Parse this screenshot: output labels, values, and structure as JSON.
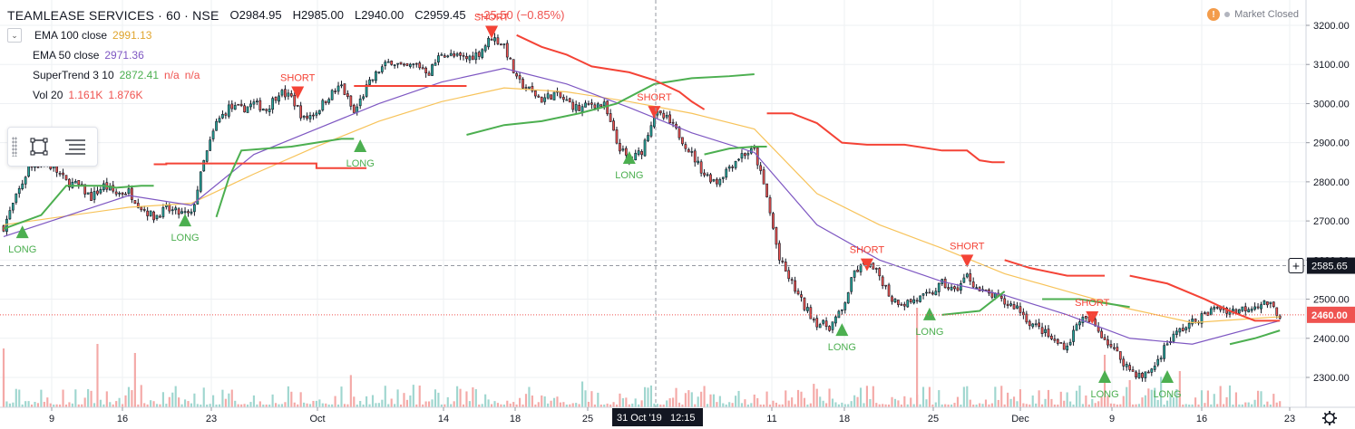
{
  "legend": {
    "symbol": "TEAMLEASE SERVICES · 60 · NSE",
    "open": "O2984.95",
    "high": "H2985.00",
    "low": "L2940.00",
    "close": "C2959.45",
    "change": "−25.50 (−0.85%)",
    "ema100_label": "EMA 100 close",
    "ema100_value": "2991.13",
    "ema50_label": "EMA 50 close",
    "ema50_value": "2971.36",
    "supertrend_label": "SuperTrend 3 10",
    "supertrend_value": "2872.41",
    "supertrend_na1": "n/a",
    "supertrend_na2": "n/a",
    "vol_label": "Vol 20",
    "vol_value1": "1.161K",
    "vol_value2": "1.876K"
  },
  "market_status": "Market Closed",
  "colors": {
    "up": "#26a69a",
    "down": "#ef5350",
    "ema100": "#f7c35a",
    "ema50": "#7e57c2",
    "st_up": "#4caf50",
    "st_down": "#f44336",
    "vol_up": "#9fd6cf",
    "vol_down": "#f4a9a7"
  },
  "chart_data": {
    "type": "candlestick",
    "ylim": [
      2260,
      3230
    ],
    "y_ticks": [
      "3200.00",
      "3100.00",
      "3000.00",
      "2900.00",
      "2800.00",
      "2700.00",
      "2600.00",
      "2500.00",
      "2400.00",
      "2300.00"
    ],
    "x_ticks": [
      "9",
      "16",
      "23",
      "Oct",
      "14",
      "18",
      "25",
      "11",
      "18",
      "25",
      "Dec",
      "9",
      "16",
      "23"
    ],
    "crosshair_price": "2585.65",
    "crosshair_time": "31 Oct '19",
    "crosshair_clock": "12:15",
    "last_price": "2460.00",
    "close_path": [
      {
        "t": 0,
        "v": 2685
      },
      {
        "t": 2,
        "v": 2760
      },
      {
        "t": 4,
        "v": 2835
      },
      {
        "t": 6,
        "v": 2850
      },
      {
        "t": 8,
        "v": 2835
      },
      {
        "t": 10,
        "v": 2800
      },
      {
        "t": 12,
        "v": 2790
      },
      {
        "t": 14,
        "v": 2760
      },
      {
        "t": 16,
        "v": 2790
      },
      {
        "t": 18,
        "v": 2770
      },
      {
        "t": 20,
        "v": 2775
      },
      {
        "t": 22,
        "v": 2735
      },
      {
        "t": 24,
        "v": 2710
      },
      {
        "t": 26,
        "v": 2730
      },
      {
        "t": 28,
        "v": 2720
      },
      {
        "t": 30,
        "v": 2715
      },
      {
        "t": 32,
        "v": 2850
      },
      {
        "t": 34,
        "v": 2950
      },
      {
        "t": 36,
        "v": 2990
      },
      {
        "t": 38,
        "v": 2985
      },
      {
        "t": 40,
        "v": 3000
      },
      {
        "t": 42,
        "v": 2985
      },
      {
        "t": 44,
        "v": 3030
      },
      {
        "t": 46,
        "v": 3015
      },
      {
        "t": 48,
        "v": 2960
      },
      {
        "t": 50,
        "v": 2980
      },
      {
        "t": 52,
        "v": 3020
      },
      {
        "t": 54,
        "v": 3045
      },
      {
        "t": 56,
        "v": 2975
      },
      {
        "t": 58,
        "v": 3040
      },
      {
        "t": 60,
        "v": 3085
      },
      {
        "t": 62,
        "v": 3110
      },
      {
        "t": 64,
        "v": 3090
      },
      {
        "t": 66,
        "v": 3100
      },
      {
        "t": 68,
        "v": 3080
      },
      {
        "t": 70,
        "v": 3130
      },
      {
        "t": 72,
        "v": 3120
      },
      {
        "t": 74,
        "v": 3115
      },
      {
        "t": 76,
        "v": 3130
      },
      {
        "t": 78,
        "v": 3170
      },
      {
        "t": 80,
        "v": 3150
      },
      {
        "t": 82,
        "v": 3060
      },
      {
        "t": 84,
        "v": 3035
      },
      {
        "t": 86,
        "v": 3010
      },
      {
        "t": 88,
        "v": 3025
      },
      {
        "t": 90,
        "v": 3005
      },
      {
        "t": 92,
        "v": 2985
      },
      {
        "t": 94,
        "v": 3000
      },
      {
        "t": 96,
        "v": 2995
      },
      {
        "t": 98,
        "v": 2900
      },
      {
        "t": 100,
        "v": 2850
      },
      {
        "t": 102,
        "v": 2880
      },
      {
        "t": 104,
        "v": 2975
      },
      {
        "t": 106,
        "v": 2960
      },
      {
        "t": 108,
        "v": 2920
      },
      {
        "t": 110,
        "v": 2870
      },
      {
        "t": 112,
        "v": 2820
      },
      {
        "t": 114,
        "v": 2800
      },
      {
        "t": 116,
        "v": 2840
      },
      {
        "t": 118,
        "v": 2870
      },
      {
        "t": 120,
        "v": 2880
      },
      {
        "t": 122,
        "v": 2760
      },
      {
        "t": 124,
        "v": 2600
      },
      {
        "t": 126,
        "v": 2540
      },
      {
        "t": 128,
        "v": 2480
      },
      {
        "t": 130,
        "v": 2440
      },
      {
        "t": 132,
        "v": 2430
      },
      {
        "t": 134,
        "v": 2470
      },
      {
        "t": 136,
        "v": 2570
      },
      {
        "t": 138,
        "v": 2590
      },
      {
        "t": 140,
        "v": 2560
      },
      {
        "t": 142,
        "v": 2500
      },
      {
        "t": 144,
        "v": 2490
      },
      {
        "t": 146,
        "v": 2500
      },
      {
        "t": 148,
        "v": 2510
      },
      {
        "t": 150,
        "v": 2540
      },
      {
        "t": 152,
        "v": 2520
      },
      {
        "t": 154,
        "v": 2560
      },
      {
        "t": 156,
        "v": 2520
      },
      {
        "t": 158,
        "v": 2510
      },
      {
        "t": 160,
        "v": 2490
      },
      {
        "t": 162,
        "v": 2480
      },
      {
        "t": 164,
        "v": 2440
      },
      {
        "t": 166,
        "v": 2420
      },
      {
        "t": 168,
        "v": 2390
      },
      {
        "t": 170,
        "v": 2380
      },
      {
        "t": 172,
        "v": 2450
      },
      {
        "t": 174,
        "v": 2440
      },
      {
        "t": 176,
        "v": 2400
      },
      {
        "t": 178,
        "v": 2360
      },
      {
        "t": 180,
        "v": 2320
      },
      {
        "t": 182,
        "v": 2300
      },
      {
        "t": 184,
        "v": 2330
      },
      {
        "t": 186,
        "v": 2390
      },
      {
        "t": 188,
        "v": 2420
      },
      {
        "t": 190,
        "v": 2440
      },
      {
        "t": 192,
        "v": 2460
      },
      {
        "t": 194,
        "v": 2480
      },
      {
        "t": 196,
        "v": 2470
      },
      {
        "t": 198,
        "v": 2475
      },
      {
        "t": 200,
        "v": 2485
      },
      {
        "t": 202,
        "v": 2490
      },
      {
        "t": 204,
        "v": 2460
      }
    ],
    "ema100": [
      {
        "t": 0,
        "v": 2690
      },
      {
        "t": 20,
        "v": 2735
      },
      {
        "t": 30,
        "v": 2745
      },
      {
        "t": 40,
        "v": 2820
      },
      {
        "t": 50,
        "v": 2890
      },
      {
        "t": 60,
        "v": 2955
      },
      {
        "t": 70,
        "v": 3005
      },
      {
        "t": 80,
        "v": 3040
      },
      {
        "t": 90,
        "v": 3030
      },
      {
        "t": 100,
        "v": 3005
      },
      {
        "t": 110,
        "v": 2975
      },
      {
        "t": 120,
        "v": 2935
      },
      {
        "t": 130,
        "v": 2770
      },
      {
        "t": 140,
        "v": 2690
      },
      {
        "t": 150,
        "v": 2630
      },
      {
        "t": 160,
        "v": 2565
      },
      {
        "t": 170,
        "v": 2520
      },
      {
        "t": 180,
        "v": 2475
      },
      {
        "t": 190,
        "v": 2440
      },
      {
        "t": 204,
        "v": 2455
      }
    ],
    "ema50": [
      {
        "t": 0,
        "v": 2660
      },
      {
        "t": 20,
        "v": 2765
      },
      {
        "t": 30,
        "v": 2740
      },
      {
        "t": 40,
        "v": 2870
      },
      {
        "t": 50,
        "v": 2935
      },
      {
        "t": 60,
        "v": 3000
      },
      {
        "t": 70,
        "v": 3055
      },
      {
        "t": 80,
        "v": 3090
      },
      {
        "t": 90,
        "v": 3050
      },
      {
        "t": 100,
        "v": 2990
      },
      {
        "t": 110,
        "v": 2925
      },
      {
        "t": 120,
        "v": 2875
      },
      {
        "t": 130,
        "v": 2690
      },
      {
        "t": 140,
        "v": 2600
      },
      {
        "t": 150,
        "v": 2545
      },
      {
        "t": 160,
        "v": 2510
      },
      {
        "t": 170,
        "v": 2460
      },
      {
        "t": 180,
        "v": 2400
      },
      {
        "t": 190,
        "v": 2385
      },
      {
        "t": 204,
        "v": 2445
      }
    ],
    "supertrend_segments": [
      {
        "trend": "up",
        "points": [
          [
            0,
            2680
          ],
          [
            6,
            2715
          ],
          [
            10,
            2790
          ],
          [
            16,
            2790
          ],
          [
            18,
            2785
          ],
          [
            22,
            2790
          ],
          [
            24,
            2790
          ]
        ]
      },
      {
        "trend": "down",
        "points": [
          [
            24,
            2845
          ],
          [
            26,
            2845
          ],
          [
            26,
            2847
          ],
          [
            50,
            2847
          ],
          [
            50,
            2835
          ],
          [
            58,
            2835
          ]
        ]
      },
      {
        "trend": "up",
        "points": [
          [
            34,
            2710
          ],
          [
            36,
            2810
          ],
          [
            38,
            2880
          ],
          [
            42,
            2885
          ],
          [
            46,
            2890
          ],
          [
            50,
            2900
          ],
          [
            54,
            2910
          ],
          [
            56,
            2910
          ]
        ]
      },
      {
        "trend": "down",
        "points": [
          [
            56,
            3045
          ],
          [
            74,
            3045
          ]
        ]
      },
      {
        "trend": "up",
        "points": [
          [
            74,
            2920
          ],
          [
            80,
            2945
          ],
          [
            86,
            2955
          ],
          [
            92,
            2975
          ],
          [
            98,
            3000
          ],
          [
            104,
            3050
          ],
          [
            110,
            3065
          ],
          [
            116,
            3070
          ],
          [
            120,
            3075
          ]
        ]
      },
      {
        "trend": "down",
        "points": [
          [
            82,
            3175
          ],
          [
            86,
            3145
          ],
          [
            90,
            3125
          ],
          [
            94,
            3095
          ],
          [
            100,
            3080
          ],
          [
            104,
            3060
          ],
          [
            108,
            3030
          ],
          [
            110,
            3005
          ],
          [
            112,
            2985
          ]
        ]
      },
      {
        "trend": "up",
        "points": [
          [
            112,
            2870
          ],
          [
            116,
            2885
          ],
          [
            120,
            2890
          ],
          [
            122,
            2890
          ]
        ]
      },
      {
        "trend": "down",
        "points": [
          [
            122,
            2975
          ],
          [
            126,
            2975
          ],
          [
            130,
            2950
          ],
          [
            134,
            2900
          ],
          [
            138,
            2895
          ],
          [
            144,
            2895
          ],
          [
            150,
            2880
          ],
          [
            154,
            2880
          ],
          [
            156,
            2855
          ],
          [
            158,
            2850
          ],
          [
            160,
            2850
          ]
        ]
      },
      {
        "trend": "up",
        "points": [
          [
            150,
            2460
          ],
          [
            156,
            2470
          ],
          [
            160,
            2520
          ]
        ]
      },
      {
        "trend": "down",
        "points": [
          [
            160,
            2600
          ],
          [
            164,
            2580
          ],
          [
            170,
            2560
          ],
          [
            176,
            2560
          ]
        ]
      },
      {
        "trend": "up",
        "points": [
          [
            166,
            2500
          ],
          [
            172,
            2500
          ],
          [
            176,
            2490
          ],
          [
            180,
            2480
          ]
        ]
      },
      {
        "trend": "down",
        "points": [
          [
            180,
            2560
          ],
          [
            186,
            2540
          ],
          [
            192,
            2500
          ],
          [
            196,
            2470
          ],
          [
            200,
            2445
          ],
          [
            204,
            2445
          ]
        ]
      },
      {
        "trend": "up",
        "points": [
          [
            196,
            2385
          ],
          [
            200,
            2400
          ],
          [
            204,
            2420
          ]
        ]
      }
    ],
    "signals": [
      {
        "type": "LONG",
        "t": 3,
        "v": 2670
      },
      {
        "type": "LONG",
        "t": 29,
        "v": 2700
      },
      {
        "type": "SHORT",
        "t": 47,
        "v": 3030
      },
      {
        "type": "LONG",
        "t": 57,
        "v": 2890
      },
      {
        "type": "SHORT",
        "t": 78,
        "v": 3185
      },
      {
        "type": "LONG",
        "t": 100,
        "v": 2860
      },
      {
        "type": "SHORT",
        "t": 104,
        "v": 2980
      },
      {
        "type": "LONG",
        "t": 134,
        "v": 2420
      },
      {
        "type": "SHORT",
        "t": 138,
        "v": 2590
      },
      {
        "type": "LONG",
        "t": 148,
        "v": 2460
      },
      {
        "type": "SHORT",
        "t": 154,
        "v": 2600
      },
      {
        "type": "SHORT",
        "t": 174,
        "v": 2455
      },
      {
        "type": "LONG",
        "t": 176,
        "v": 2300
      },
      {
        "type": "LONG",
        "t": 186,
        "v": 2300
      }
    ]
  }
}
